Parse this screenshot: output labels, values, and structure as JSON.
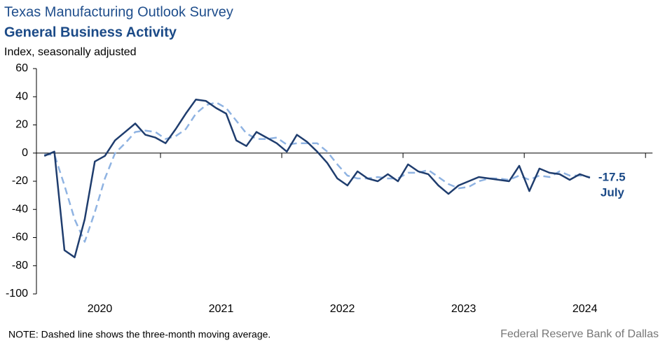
{
  "chart_data": {
    "type": "line",
    "title": "Texas Manufacturing Outlook Survey",
    "subtitle": "General Business Activity",
    "y_label": "Index, seasonally adjusted",
    "note": "NOTE: Dashed line shows the three-month  moving average.",
    "source": "Federal Reserve Bank of Dallas",
    "annotations": [
      "-17.5",
      "July"
    ],
    "xgroups": [
      "2020",
      "2021",
      "2022",
      "2023",
      "2024"
    ],
    "ylim": [
      -100,
      60
    ],
    "yticks": [
      -100,
      -80,
      -60,
      -40,
      -20,
      0,
      20,
      40,
      60
    ],
    "series": [
      {
        "name": "General Business Activity",
        "color": "#1f3d6e",
        "dash": false,
        "values": [
          -2,
          1,
          -69,
          -74,
          -47,
          -6,
          -2,
          9,
          15,
          21,
          13,
          11,
          7,
          17,
          28,
          38,
          37,
          32,
          28,
          9,
          5,
          15,
          11,
          7,
          1,
          13,
          8,
          1,
          -7,
          -18,
          -23,
          -13,
          -18,
          -20,
          -15,
          -20,
          -8,
          -13,
          -15,
          -23,
          -29,
          -23,
          -20,
          -17,
          -18,
          -19,
          -20,
          -9,
          -27,
          -11,
          -14,
          -15,
          -19,
          -15,
          -17.5
        ]
      },
      {
        "name": "Three-month moving average",
        "color": "#8fb3e2",
        "dash": true,
        "values": [
          -1,
          -1,
          -23,
          -47,
          -63,
          -42,
          -18,
          0,
          7,
          15,
          16,
          15,
          10,
          12,
          17,
          28,
          34,
          36,
          32,
          23,
          14,
          10,
          10,
          11,
          6,
          7,
          7,
          7,
          1,
          -8,
          -16,
          -18,
          -18,
          -17,
          -18,
          -18,
          -14,
          -14,
          -12,
          -17,
          -22,
          -25,
          -24,
          -20,
          -18,
          -18,
          -19,
          -16,
          -19,
          -16,
          -17,
          -13,
          -16,
          -16,
          -17
        ]
      }
    ]
  }
}
